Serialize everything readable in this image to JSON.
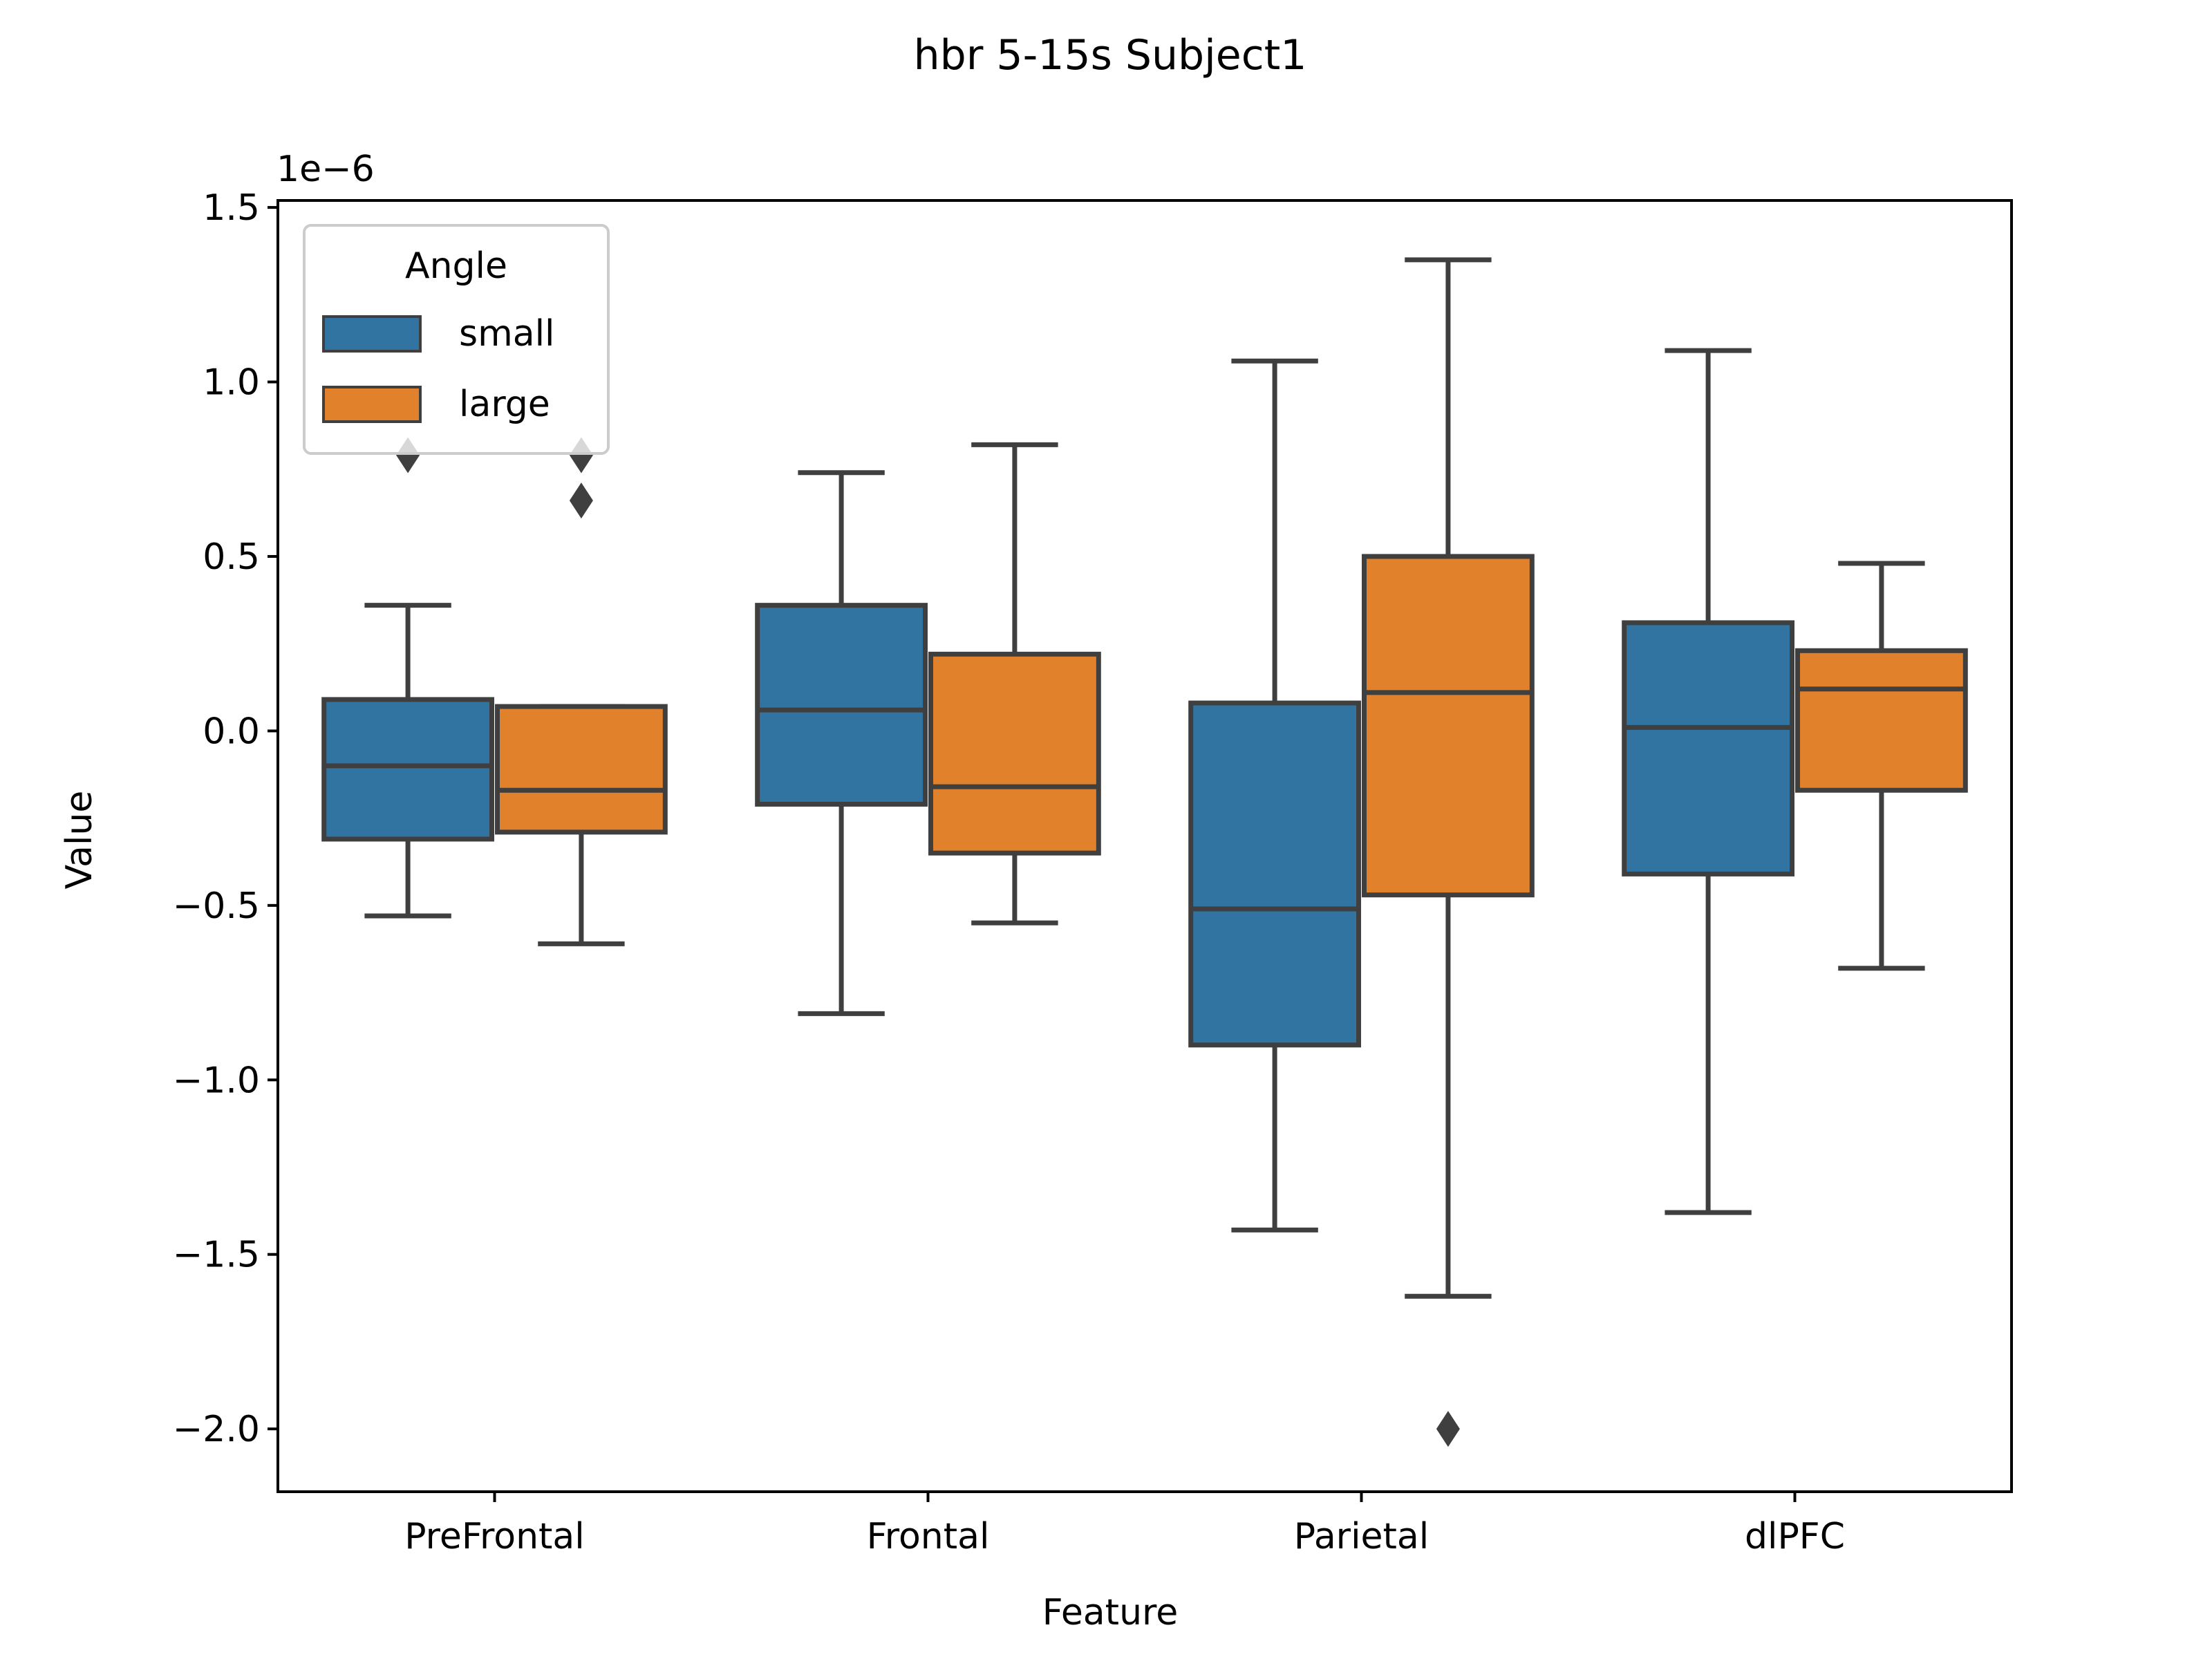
{
  "chart_data": {
    "type": "box",
    "title": "hbr 5-15s Subject1",
    "xlabel": "Feature",
    "ylabel": "Value",
    "offset_text": "1e−6",
    "scale": 1e-06,
    "ylim": [
      -2.18,
      1.52
    ],
    "yticks": [
      -2.0,
      -1.5,
      -1.0,
      -0.5,
      0.0,
      0.5,
      1.0,
      1.5
    ],
    "ytick_labels": [
      "−2.0",
      "−1.5",
      "−1.0",
      "−0.5",
      "0.0",
      "0.5",
      "1.0",
      "1.5"
    ],
    "categories": [
      "PreFrontal",
      "Frontal",
      "Parietal",
      "dlPFC"
    ],
    "legend": {
      "title": "Angle",
      "position": "top-left"
    },
    "grid": false,
    "series": [
      {
        "name": "small",
        "color": "#3274a1",
        "boxes": [
          {
            "whisker_low": -0.53,
            "q1": -0.31,
            "median": -0.1,
            "q3": 0.09,
            "whisker_high": 0.36,
            "outliers": [
              0.79
            ]
          },
          {
            "whisker_low": -0.81,
            "q1": -0.21,
            "median": 0.06,
            "q3": 0.36,
            "whisker_high": 0.74,
            "outliers": []
          },
          {
            "whisker_low": -1.43,
            "q1": -0.9,
            "median": -0.51,
            "q3": 0.08,
            "whisker_high": 1.06,
            "outliers": []
          },
          {
            "whisker_low": -1.38,
            "q1": -0.41,
            "median": 0.01,
            "q3": 0.31,
            "whisker_high": 1.09,
            "outliers": []
          }
        ]
      },
      {
        "name": "large",
        "color": "#e1812c",
        "boxes": [
          {
            "whisker_low": -0.61,
            "q1": -0.29,
            "median": -0.17,
            "q3": 0.07,
            "whisker_high": 0.07,
            "outliers": [
              0.79,
              0.66
            ]
          },
          {
            "whisker_low": -0.55,
            "q1": -0.35,
            "median": -0.16,
            "q3": 0.22,
            "whisker_high": 0.82,
            "outliers": []
          },
          {
            "whisker_low": -1.62,
            "q1": -0.47,
            "median": 0.11,
            "q3": 0.5,
            "whisker_high": 1.35,
            "outliers": [
              -2.0
            ]
          },
          {
            "whisker_low": -0.68,
            "q1": -0.17,
            "median": 0.12,
            "q3": 0.23,
            "whisker_high": 0.48,
            "outliers": []
          }
        ]
      }
    ]
  }
}
